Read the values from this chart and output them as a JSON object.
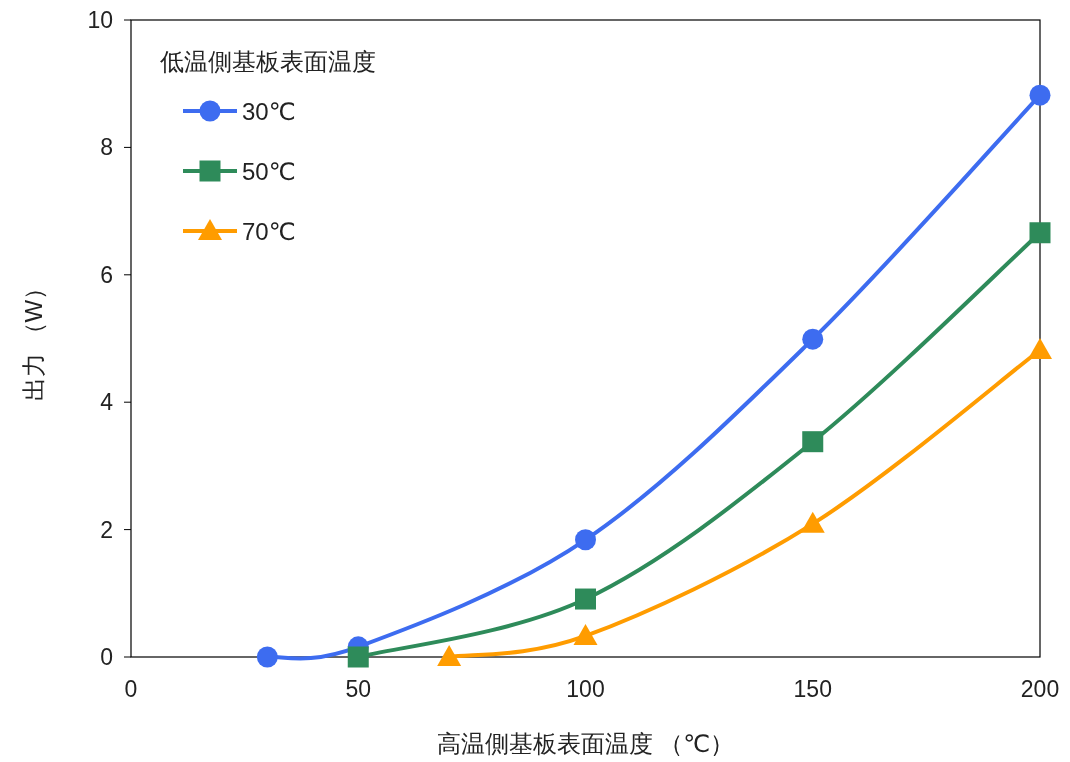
{
  "chart_data": {
    "type": "line",
    "xlabel": "高温側基板表面温度 （℃）",
    "ylabel": "出力 （W）",
    "legend_title": "低温側基板表面温度",
    "legend": "top left",
    "xlim": [
      0,
      200
    ],
    "ylim": [
      0,
      10
    ],
    "xticks": [
      0,
      50,
      100,
      150,
      200
    ],
    "yticks": [
      0,
      2,
      4,
      6,
      8,
      10
    ],
    "line_style": "solid",
    "series": [
      {
        "name": "30℃",
        "color": "#3d6cf0",
        "marker": "circle",
        "x": [
          30,
          50,
          100,
          150,
          200
        ],
        "values": [
          0,
          0.16,
          1.84,
          4.99,
          8.82
        ]
      },
      {
        "name": "50℃",
        "color": "#2e8b5a",
        "marker": "square",
        "x": [
          50,
          100,
          150,
          200
        ],
        "values": [
          0,
          0.91,
          3.38,
          6.66
        ]
      },
      {
        "name": "70℃",
        "color": "#ff9c00",
        "marker": "triangle",
        "x": [
          70,
          100,
          150,
          200
        ],
        "values": [
          0,
          0.33,
          2.09,
          4.82
        ]
      }
    ]
  }
}
